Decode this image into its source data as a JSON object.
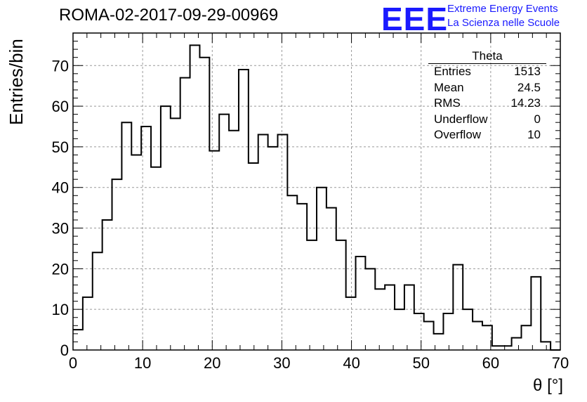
{
  "header": {
    "title": "ROMA-02-2017-09-29-00969",
    "logo_text": "EEE",
    "logo_line1": "Extreme Energy Events",
    "logo_line2": "La Scienza nelle Scuole"
  },
  "stats_box": {
    "title": "Theta",
    "rows": [
      {
        "label": "Entries",
        "value": "1513"
      },
      {
        "label": "Mean",
        "value": "24.5"
      },
      {
        "label": "RMS",
        "value": "14.23"
      },
      {
        "label": "Underflow",
        "value": "0"
      },
      {
        "label": "Overflow",
        "value": "10"
      }
    ]
  },
  "colors": {
    "logo": "#1a1aff",
    "line": "#000000",
    "grid": "#999999"
  },
  "chart_data": {
    "type": "bar",
    "histogram": true,
    "xlabel": "θ [°]",
    "ylabel": "Entries/bin",
    "xlim": [
      0,
      70
    ],
    "ylim": [
      0,
      78
    ],
    "x_ticks": [
      0,
      10,
      20,
      30,
      40,
      50,
      60,
      70
    ],
    "y_ticks": [
      0,
      10,
      20,
      30,
      40,
      50,
      60,
      70
    ],
    "grid": true,
    "bin_width": 1.4,
    "bin_edges_start": 0,
    "values": [
      5,
      13,
      24,
      32,
      42,
      56,
      48,
      55,
      45,
      60,
      57,
      67,
      75,
      72,
      49,
      58,
      54,
      69,
      46,
      53,
      50,
      53,
      38,
      36,
      27,
      40,
      35,
      27,
      13,
      23,
      20,
      15,
      16,
      10,
      16,
      9,
      7,
      4,
      9,
      21,
      10,
      7,
      6,
      1,
      1,
      3,
      6,
      18,
      2,
      0
    ]
  }
}
